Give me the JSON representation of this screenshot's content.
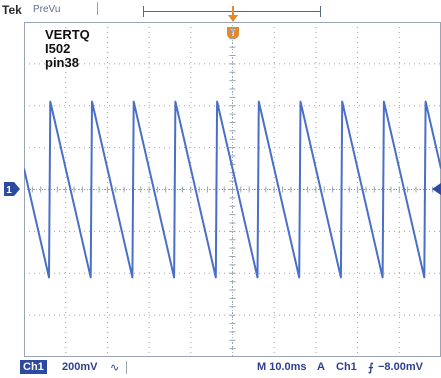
{
  "header": {
    "brand": "Tek",
    "run_state": "PreVu"
  },
  "overlay_text": [
    "VERTQ",
    "I502",
    "pin38"
  ],
  "markers": {
    "trigger_position": "T",
    "channel1_ground": "1"
  },
  "footer": {
    "channel_badge": "Ch1",
    "channel_scale": "200mV",
    "bandwidth_icon": "∿",
    "timebase": "M 10.0ms",
    "trigger_mode": "A",
    "trigger_source": "Ch1",
    "trigger_slope_icon": "⨍",
    "trigger_level": "−8.00mV"
  },
  "colors": {
    "trace": "#4a6fc8",
    "grid": "#9aa4b4",
    "trigger_marker": "#e08a2c",
    "status_text": "#2d3f8f"
  },
  "waveform": {
    "shape": "sawtooth",
    "period_divisions": 1.0,
    "high_level_divisions": 2.1,
    "low_level_divisions": -2.1,
    "divisions_x": 10,
    "divisions_y": 8
  }
}
